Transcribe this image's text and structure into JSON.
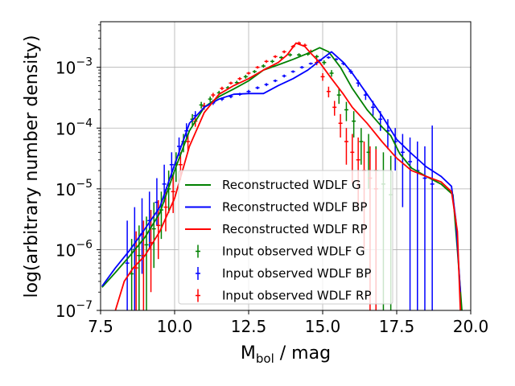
{
  "chart_data": {
    "type": "line",
    "xlabel": {
      "main": "M",
      "sub": "bol",
      "rest": " / mag"
    },
    "ylabel": "log(arbitrary number density)",
    "xlim": [
      7.5,
      20.0
    ],
    "ylim_log10": [
      -7,
      -2.25
    ],
    "y_scale": "log",
    "x_ticks": [
      7.5,
      10.0,
      12.5,
      15.0,
      17.5,
      20.0
    ],
    "x_tick_labels": [
      "7.5",
      "10.0",
      "12.5",
      "15.0",
      "17.5",
      "20.0"
    ],
    "y_ticks_log10": [
      -7,
      -6,
      -5,
      -4,
      -3
    ],
    "y_tick_labels": [
      {
        "base": "10",
        "exp": "−7"
      },
      {
        "base": "10",
        "exp": "−6"
      },
      {
        "base": "10",
        "exp": "−5"
      },
      {
        "base": "10",
        "exp": "−4"
      },
      {
        "base": "10",
        "exp": "−3"
      }
    ],
    "grid": true,
    "legend_position": "center-bottom",
    "series": [
      {
        "name": "Reconstructed WDLF G",
        "kind": "line",
        "color": "#008000",
        "x": [
          7.55,
          8.0,
          8.5,
          9.0,
          9.5,
          10.0,
          10.5,
          11.0,
          11.5,
          12.0,
          12.5,
          13.0,
          13.5,
          14.0,
          14.5,
          14.9,
          15.2,
          15.6,
          16.0,
          16.5,
          17.0,
          17.3,
          17.6,
          18.0,
          18.5,
          19.0,
          19.4,
          19.55,
          19.7
        ],
        "y": [
          2.4e-07,
          4.2e-07,
          8e-07,
          1.6e-06,
          4e-06,
          2e-05,
          9e-05,
          0.00022,
          0.00033,
          0.00044,
          0.0006,
          0.0009,
          0.0011,
          0.00135,
          0.0017,
          0.0021,
          0.0018,
          0.001,
          0.00045,
          0.0002,
          0.000105,
          7.5e-05,
          3.8e-05,
          2.2e-05,
          1.6e-05,
          1.2e-05,
          8e-06,
          1e-06,
          1e-07
        ]
      },
      {
        "name": "Reconstructed WDLF BP",
        "kind": "line",
        "color": "#0000ff",
        "x": [
          7.55,
          8.0,
          8.5,
          9.0,
          9.5,
          10.0,
          10.5,
          11.0,
          11.5,
          12.0,
          12.5,
          13.0,
          13.5,
          14.0,
          14.5,
          15.0,
          15.3,
          15.7,
          16.0,
          16.5,
          17.0,
          17.5,
          18.0,
          18.5,
          19.0,
          19.35,
          19.5,
          19.65
        ],
        "y": [
          2.5e-07,
          5e-07,
          1e-06,
          2.2e-06,
          5e-06,
          2.5e-05,
          0.00012,
          0.00022,
          0.0003,
          0.00036,
          0.00037,
          0.00037,
          0.0005,
          0.00065,
          0.0009,
          0.0014,
          0.0018,
          0.0012,
          0.0008,
          0.00036,
          0.00016,
          6.5e-05,
          3.8e-05,
          2.3e-05,
          1.6e-05,
          1.1e-05,
          3e-06,
          2e-07
        ]
      },
      {
        "name": "Reconstructed WDLF RP",
        "kind": "line",
        "color": "#ff0000",
        "x": [
          8.0,
          8.3,
          8.6,
          9.0,
          9.5,
          10.0,
          10.5,
          11.0,
          11.5,
          12.0,
          12.5,
          13.0,
          13.5,
          13.8,
          14.1,
          14.4,
          14.6,
          14.9,
          15.3,
          15.7,
          16.0,
          16.5,
          17.0,
          17.5,
          18.0,
          18.5,
          19.0,
          19.35,
          19.55,
          19.65
        ],
        "y": [
          1e-07,
          3e-07,
          5e-07,
          8e-07,
          2e-06,
          7e-06,
          5e-05,
          0.00018,
          0.00036,
          0.0005,
          0.00065,
          0.0009,
          0.0012,
          0.0016,
          0.0025,
          0.0022,
          0.0017,
          0.0012,
          0.00065,
          0.00036,
          0.00022,
          0.00012,
          6e-05,
          3.2e-05,
          2e-05,
          1.6e-05,
          1.3e-05,
          9e-06,
          2e-06,
          1e-07
        ]
      },
      {
        "name": "Input observed WDLF G",
        "kind": "errorbar",
        "color": "#008000",
        "x": [
          8.55,
          8.8,
          9.05,
          9.3,
          9.55,
          9.8,
          10.05,
          10.3,
          10.6,
          10.9,
          11.2,
          11.5,
          11.8,
          12.1,
          12.4,
          12.7,
          13.0,
          13.3,
          13.6,
          13.9,
          14.2,
          14.5,
          14.8,
          15.05,
          15.3,
          15.55,
          15.8,
          16.05,
          16.3,
          16.55,
          16.8,
          17.05,
          17.3
        ],
        "y": [
          4e-07,
          8e-07,
          1.2e-06,
          2.2e-06,
          4.5e-06,
          1e-05,
          2.5e-05,
          6e-05,
          0.00014,
          0.00024,
          0.0003,
          0.00038,
          0.00046,
          0.00056,
          0.0007,
          0.00085,
          0.00105,
          0.00125,
          0.00145,
          0.0016,
          0.0016,
          0.00165,
          0.0015,
          0.0012,
          0.0008,
          0.00035,
          0.0002,
          0.00013,
          6e-05,
          4e-05,
          2e-05,
          1.2e-05,
          8e-06
        ],
        "lo": [
          1e-07,
          1e-07,
          1e-07,
          5e-07,
          1.5e-06,
          4e-06,
          1.3e-05,
          4e-05,
          0.00011,
          0.00021,
          0.00027,
          0.00035,
          0.00043,
          0.00052,
          0.00065,
          0.0008,
          0.00098,
          0.00117,
          0.00137,
          0.0015,
          0.0015,
          0.00155,
          0.0014,
          0.0011,
          0.0007,
          0.00025,
          0.00013,
          7e-05,
          2.5e-05,
          1e-05,
          1e-07,
          1e-07,
          1e-07
        ],
        "hi": [
          1.5e-06,
          2.5e-06,
          3.5e-06,
          6e-06,
          9e-06,
          2e-05,
          4e-05,
          8e-05,
          0.00017,
          0.00027,
          0.00033,
          0.00041,
          0.00049,
          0.0006,
          0.00075,
          0.0009,
          0.00112,
          0.00133,
          0.00153,
          0.0017,
          0.0017,
          0.00175,
          0.0016,
          0.0013,
          0.0009,
          0.00045,
          0.00027,
          0.00019,
          0.0001,
          8e-05,
          5e-05,
          4e-05,
          3.5e-05
        ]
      },
      {
        "name": "Input observed WDLF BP",
        "kind": "errorbar",
        "color": "#0000ff",
        "x": [
          8.4,
          8.65,
          8.9,
          9.15,
          9.4,
          9.65,
          9.9,
          10.15,
          10.4,
          10.7,
          11.0,
          11.3,
          11.6,
          11.9,
          12.2,
          12.5,
          12.8,
          13.1,
          13.4,
          13.7,
          14.0,
          14.3,
          14.6,
          14.9,
          15.2,
          15.45,
          15.7,
          15.95,
          16.2,
          16.45,
          16.7,
          16.95,
          17.2,
          17.45,
          17.7,
          17.95,
          18.2,
          18.45,
          18.7
        ],
        "y": [
          6e-07,
          1e-06,
          1.8e-06,
          3e-06,
          6e-06,
          1.2e-05,
          2.5e-05,
          5e-05,
          9e-05,
          0.00016,
          0.00023,
          0.00026,
          0.0003,
          0.00033,
          0.00036,
          0.0004,
          0.00046,
          0.00052,
          0.0006,
          0.00072,
          0.00085,
          0.001,
          0.00115,
          0.0013,
          0.00145,
          0.00135,
          0.00115,
          0.00085,
          0.00055,
          0.00035,
          0.00022,
          0.00014,
          9e-05,
          6e-05,
          4e-05,
          2.8e-05,
          2e-05,
          1.5e-05,
          1.2e-05
        ],
        "lo": [
          1e-07,
          1e-07,
          4e-07,
          1e-06,
          2.5e-06,
          6e-06,
          1.5e-05,
          3.5e-05,
          7e-05,
          0.000135,
          0.000205,
          0.00024,
          0.00028,
          0.00031,
          0.00034,
          0.000375,
          0.000435,
          0.00049,
          0.00057,
          0.00068,
          0.00081,
          0.00095,
          0.0011,
          0.00124,
          0.00138,
          0.00128,
          0.00108,
          0.00078,
          0.00048,
          0.00029,
          0.00016,
          9e-05,
          4.5e-05,
          2e-05,
          5e-06,
          1e-07,
          1e-07,
          1e-07,
          1e-07
        ],
        "hi": [
          3e-06,
          5e-06,
          7e-06,
          9e-06,
          1.5e-05,
          2.5e-05,
          4e-05,
          7e-05,
          0.00012,
          0.00019,
          0.00026,
          0.00028,
          0.00032,
          0.00035,
          0.00038,
          0.000425,
          0.000485,
          0.00055,
          0.00063,
          0.00076,
          0.00089,
          0.00105,
          0.0012,
          0.00136,
          0.00152,
          0.00142,
          0.00122,
          0.00092,
          0.00062,
          0.00041,
          0.00028,
          0.00019,
          0.00014,
          0.0001,
          8e-05,
          7e-05,
          6e-05,
          5e-05,
          0.00011
        ]
      },
      {
        "name": "Input observed WDLF RP",
        "kind": "errorbar",
        "color": "#ff0000",
        "x": [
          8.7,
          8.95,
          9.2,
          9.45,
          9.7,
          9.95,
          10.2,
          10.45,
          10.7,
          11.0,
          11.3,
          11.6,
          11.9,
          12.2,
          12.5,
          12.8,
          13.1,
          13.4,
          13.7,
          14.0,
          14.2,
          14.4,
          14.6,
          14.8,
          15.0,
          15.2,
          15.4,
          15.6,
          15.8,
          16.0,
          16.2,
          16.4,
          16.6,
          16.8
        ],
        "y": [
          5e-07,
          8e-07,
          1.3e-06,
          2.5e-06,
          5e-06,
          9e-06,
          2.5e-05,
          6e-05,
          0.00013,
          0.00023,
          0.00035,
          0.00045,
          0.00055,
          0.00065,
          0.0008,
          0.001,
          0.00125,
          0.0015,
          0.0018,
          0.0022,
          0.0025,
          0.0023,
          0.0018,
          0.0012,
          0.0007,
          0.0004,
          0.00022,
          0.00012,
          6e-05,
          4e-05,
          3e-05,
          2e-05,
          1.5e-05,
          1e-05
        ],
        "lo": [
          1e-07,
          1e-07,
          2e-07,
          7e-07,
          2e-06,
          4e-06,
          1.4e-05,
          4.2e-05,
          0.000105,
          0.0002,
          0.00032,
          0.00042,
          0.00052,
          0.00061,
          0.00076,
          0.00095,
          0.00118,
          0.00142,
          0.0017,
          0.00208,
          0.00235,
          0.00215,
          0.00165,
          0.00108,
          0.0006,
          0.00032,
          0.00016,
          7e-05,
          2.5e-05,
          1.2e-05,
          5e-06,
          1e-06,
          1e-07,
          1e-07
        ],
        "hi": [
          2e-06,
          3e-06,
          4.5e-06,
          6.5e-06,
          1e-05,
          1.7e-05,
          4e-05,
          8e-05,
          0.000155,
          0.00026,
          0.00038,
          0.00048,
          0.00058,
          0.00069,
          0.00084,
          0.00105,
          0.00132,
          0.00158,
          0.0019,
          0.00232,
          0.00265,
          0.00245,
          0.00195,
          0.00132,
          0.0008,
          0.00048,
          0.00028,
          0.00017,
          0.0001,
          8e-05,
          7e-05,
          6e-05,
          5e-05,
          4.5e-05
        ]
      }
    ]
  }
}
